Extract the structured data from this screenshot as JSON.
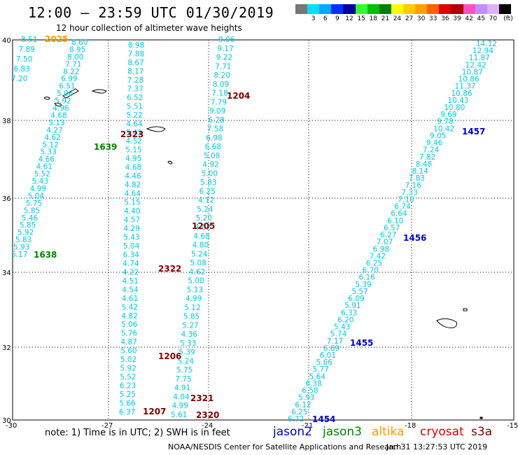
{
  "title": "12:00 – 23:59 UTC 01/30/2019",
  "subtitle": "12 hour collection of altimeter wave heights",
  "legend": {
    "unit": "(ft)",
    "colors": [
      "#777777",
      "#00e0f0",
      "#00aaff",
      "#0030ff",
      "#0000a0",
      "#30ff30",
      "#00c000",
      "#008000",
      "#ffff00",
      "#ffcc00",
      "#ffa000",
      "#ff6000",
      "#e00000",
      "#b00000",
      "#ff50c0",
      "#c090ff",
      "#e0b0ff",
      "#000000"
    ],
    "labels": [
      "3",
      "6",
      "9",
      "12",
      "15",
      "18",
      "21",
      "24",
      "27",
      "30",
      "33",
      "36",
      "39",
      "42",
      "45",
      "70"
    ]
  },
  "axes": {
    "lat_labels": [
      "40",
      "38",
      "36",
      "34",
      "32",
      "30"
    ],
    "lon_labels": [
      "-30",
      "-27",
      "-24",
      "-21",
      "-18",
      "-15"
    ]
  },
  "passes": [
    {
      "id": "2025",
      "color": "#ff9900"
    },
    {
      "id": "1204",
      "color": "#800000"
    },
    {
      "id": "2323",
      "color": "#800000"
    },
    {
      "id": "1639",
      "color": "#008000"
    },
    {
      "id": "1457",
      "color": "#0000c0"
    },
    {
      "id": "1205",
      "color": "#800000"
    },
    {
      "id": "1638",
      "color": "#008000"
    },
    {
      "id": "1456",
      "color": "#0000c0"
    },
    {
      "id": "2322",
      "color": "#800000"
    },
    {
      "id": "1455",
      "color": "#0000c0"
    },
    {
      "id": "1206",
      "color": "#800000"
    },
    {
      "id": "2321",
      "color": "#800000"
    },
    {
      "id": "1207",
      "color": "#800000"
    },
    {
      "id": "2320",
      "color": "#800000"
    },
    {
      "id": "1454",
      "color": "#0000c0"
    }
  ],
  "tracks": {
    "cryosat_west_top": [
      "8.51",
      "7.89",
      "7.50",
      "6.83",
      "7.20"
    ],
    "track_a": [
      "8.60",
      "8.95",
      "8.00",
      "7.71",
      "8.22",
      "6.99",
      "6.51",
      "5.06",
      "5.92",
      "4.96",
      "4.68",
      "5.13",
      "4.27",
      "4.62",
      "5.12",
      "5.33",
      "4.66",
      "4.61",
      "5.52",
      "5.43",
      "4.99",
      "5.04",
      "5.75",
      "5.85",
      "5.46",
      "5.85",
      "5.92",
      "5.83",
      "5.93",
      "5.17"
    ],
    "track_b": [
      "8.98",
      "7.88",
      "8.67",
      "8.17",
      "7.28",
      "7.37",
      "6.52",
      "5.51",
      "5.22",
      "4.64",
      "5.42",
      "4.52",
      "5.15",
      "4.95",
      "4.68",
      "4.46",
      "4.82",
      "4.64",
      "5.15",
      "4.40",
      "4.57",
      "4.29",
      "5.43",
      "5.04",
      "6.34",
      "4.74",
      "4.22",
      "4.51",
      "4.54",
      "4.61",
      "5.42",
      "4.82",
      "5.06",
      "5.76",
      "4.87",
      "5.60",
      "5.02",
      "5.92",
      "5.52",
      "6.23",
      "5.25",
      "5.66",
      "6.37"
    ],
    "track_c": [
      "9.06",
      "9.17",
      "9.22",
      "7.71",
      "8.20",
      "8.09",
      "7.18",
      "7.79",
      "9.09",
      "6.28",
      "7.58",
      "6.98",
      "6.68",
      "5.08",
      "4.92",
      "5.00",
      "5.83",
      "6.25",
      "4.12",
      "5.24",
      "5.20",
      "4.52",
      "4.68",
      "4.80",
      "5.24",
      "5.08",
      "4.62",
      "5.00",
      "5.13",
      "4.99",
      "5.12",
      "5.85",
      "5.27",
      "4.36",
      "5.33",
      "5.39",
      "5.24",
      "5.75",
      "7.75",
      "4.91",
      "4.04",
      "4.99",
      "5.61"
    ],
    "track_d": [
      "14.12",
      "12.94",
      "11.87",
      "12.42",
      "10.87",
      "10.86",
      "11.37",
      "10.86",
      "10.43",
      "10.80",
      "9.69",
      "9.78",
      "10.42",
      "9.05",
      "9.46",
      "7.24",
      "7.82",
      "8.48",
      "8.14",
      "7.83",
      "7.16",
      "7.33",
      "7.10",
      "6.74",
      "6.64",
      "6.10",
      "6.57",
      "6.27",
      "7.07",
      "6.98",
      "7.42",
      "6.25",
      "6.70",
      "6.16",
      "5.39",
      "5.57",
      "6.09",
      "5.91",
      "6.33",
      "6.20",
      "5.43",
      "5.74",
      "7.17",
      "6.69",
      "6.01",
      "5.66",
      "5.77",
      "5.64",
      "6.38",
      "6.58",
      "5.93",
      "6.12",
      "6.25",
      "6.72"
    ]
  },
  "footer": {
    "note": "note: 1) Time is in UTC; 2) SWH is in feet",
    "satellites": [
      {
        "name": "jason2",
        "color": "#0000cc"
      },
      {
        "name": "jason3",
        "color": "#008000"
      },
      {
        "name": "altika",
        "color": "#ff9900"
      },
      {
        "name": "cryosat",
        "color": "#dd0000"
      },
      {
        "name": "s3a",
        "color": "#800000"
      }
    ],
    "credit": "NOAA/NESDIS Center for Satellite Applications and Research",
    "timestamp": "Jan 31 13:27:53 UTC 2019"
  }
}
